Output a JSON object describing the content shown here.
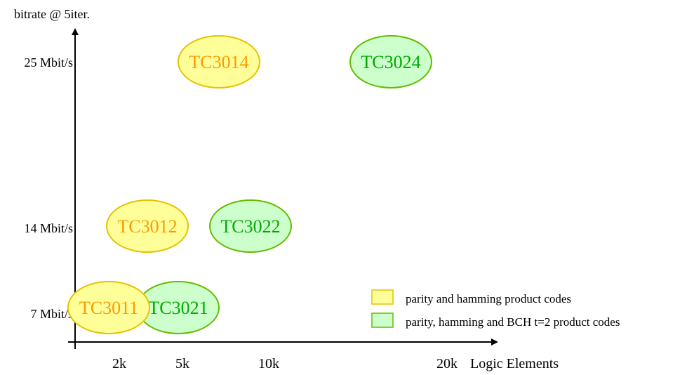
{
  "colors": {
    "background": "#ffffff",
    "axis": "#000000",
    "text": "#000000",
    "series_1_fill": "#ffff99",
    "series_1_stroke": "#e6c200",
    "series_1_text": "#ff9900",
    "series_2_fill": "#ccffcc",
    "series_2_stroke": "#66bb00",
    "series_2_text": "#00aa00"
  },
  "chart_data": {
    "type": "scatter",
    "title": "",
    "xlabel": "Logic Elements",
    "ylabel": "bitrate @ 5iter.",
    "x_ticks": [
      "2k",
      "5k",
      "10k",
      "20k"
    ],
    "y_ticks": [
      "7 Mbit/s",
      "14 Mbit/s",
      "25 Mbit/s"
    ],
    "grid": false,
    "legend_position": "bottom-right",
    "series": [
      {
        "name": "parity and hamming product codes",
        "color": "#ffff99",
        "points": [
          {
            "label": "TC3011",
            "x": "2k",
            "y": "7 Mbit/s"
          },
          {
            "label": "TC3012",
            "x": "2k",
            "y": "14 Mbit/s"
          },
          {
            "label": "TC3014",
            "x": "5k",
            "y": "25 Mbit/s"
          }
        ]
      },
      {
        "name": "parity, hamming and BCH t=2 product codes",
        "color": "#ccffcc",
        "points": [
          {
            "label": "TC3021",
            "x": "5k",
            "y": "7 Mbit/s"
          },
          {
            "label": "TC3022",
            "x": "10k",
            "y": "14 Mbit/s"
          },
          {
            "label": "TC3024",
            "x": "20k",
            "y": "25 Mbit/s"
          }
        ]
      }
    ]
  }
}
